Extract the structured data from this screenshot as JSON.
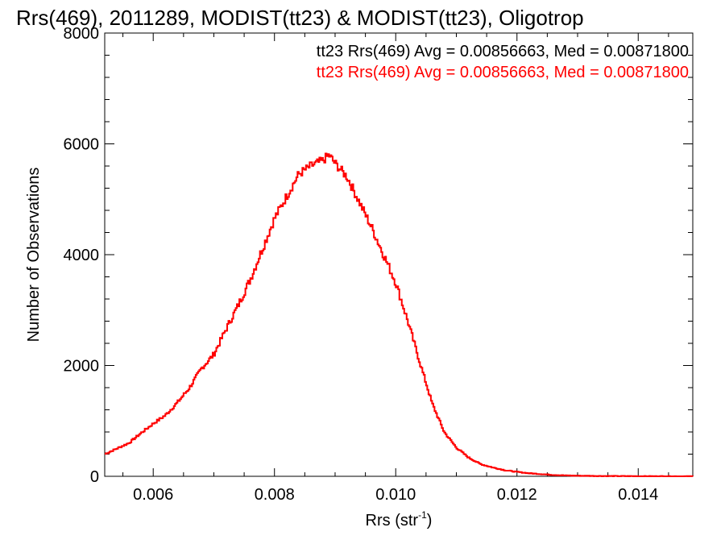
{
  "chart_data": {
    "type": "histogram",
    "title": "Rrs(469), 2011289, MODIST(tt23) & MODIST(tt23), Oligotrop",
    "xlabel_main": "Rrs (str",
    "xlabel_sup": "-1",
    "xlabel_end": ")",
    "ylabel": "Number of Observations",
    "xlim": [
      0.0052,
      0.0149
    ],
    "ylim": [
      0,
      8000
    ],
    "xticks": [
      0.006,
      0.008,
      0.01,
      0.012,
      0.014
    ],
    "xtick_labels": [
      "0.006",
      "0.008",
      "0.010",
      "0.012",
      "0.014"
    ],
    "yticks": [
      0,
      2000,
      4000,
      6000,
      8000
    ],
    "ytick_labels": [
      "0",
      "2000",
      "4000",
      "6000",
      "8000"
    ],
    "grid": false,
    "legend": [
      {
        "text": "tt23 Rrs(469) Avg = 0.00856663, Med = 0.00871800",
        "color": "#000000"
      },
      {
        "text": "tt23 Rrs(469) Avg = 0.00856663, Med = 0.00871800",
        "color": "#ff0000"
      }
    ],
    "series": [
      {
        "color": "#ff0000",
        "x": [
          0.0052,
          0.0054,
          0.0056,
          0.0058,
          0.006,
          0.0062,
          0.0064,
          0.0066,
          0.0068,
          0.007,
          0.0072,
          0.0074,
          0.0076,
          0.0078,
          0.008,
          0.0082,
          0.0084,
          0.0086,
          0.0088,
          0.0089,
          0.009,
          0.0092,
          0.0094,
          0.0096,
          0.0098,
          0.01,
          0.0102,
          0.0104,
          0.0106,
          0.0108,
          0.011,
          0.0112,
          0.0114,
          0.0116,
          0.0118,
          0.012,
          0.0122,
          0.0124,
          0.0126,
          0.0128,
          0.013,
          0.0132,
          0.0134,
          0.0136,
          0.0138,
          0.014,
          0.0142,
          0.0144,
          0.0146,
          0.0149
        ],
        "y": [
          400,
          500,
          600,
          780,
          950,
          1100,
          1330,
          1600,
          1950,
          2200,
          2650,
          3080,
          3550,
          4100,
          4650,
          5050,
          5450,
          5600,
          5700,
          5800,
          5650,
          5400,
          4950,
          4500,
          4000,
          3500,
          2800,
          2050,
          1320,
          800,
          520,
          340,
          220,
          160,
          110,
          80,
          55,
          40,
          25,
          15,
          10,
          8,
          5,
          4,
          3,
          2,
          1,
          1,
          0,
          0
        ]
      }
    ]
  }
}
